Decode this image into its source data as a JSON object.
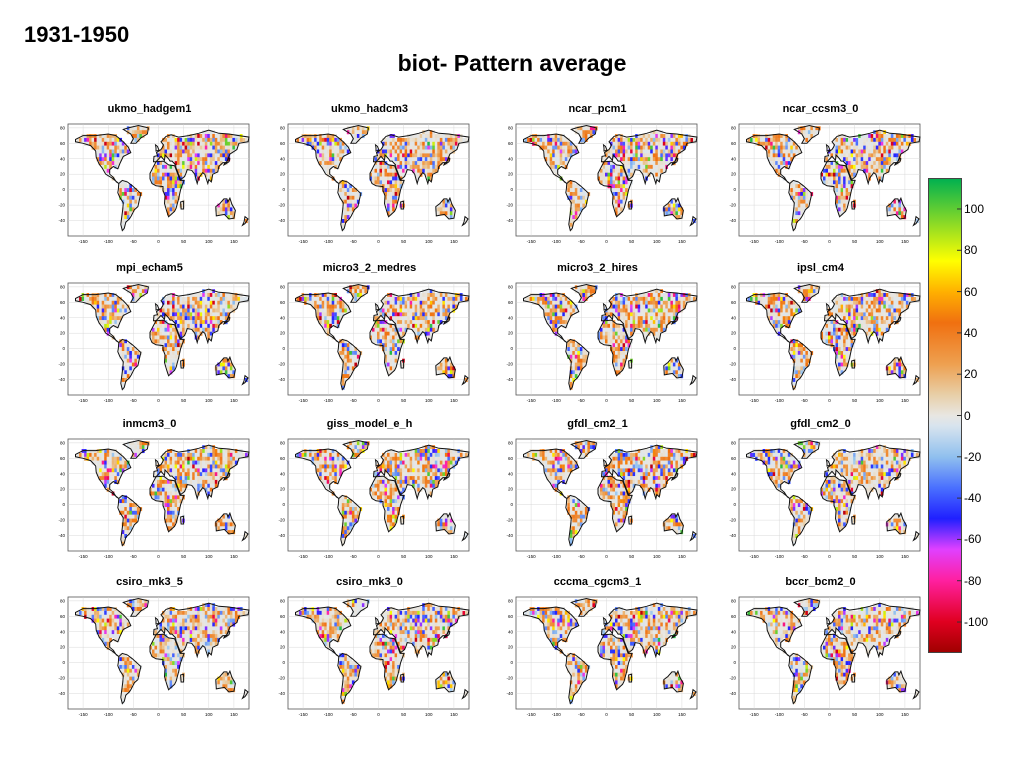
{
  "header": {
    "period": "1931-1950",
    "title": "biot- Pattern average"
  },
  "maps": [
    {
      "model": "ukmo_hadgem1"
    },
    {
      "model": "ukmo_hadcm3"
    },
    {
      "model": "ncar_pcm1"
    },
    {
      "model": "ncar_ccsm3_0"
    },
    {
      "model": "mpi_echam5"
    },
    {
      "model": "micro3_2_medres"
    },
    {
      "model": "micro3_2_hires"
    },
    {
      "model": "ipsl_cm4"
    },
    {
      "model": "inmcm3_0"
    },
    {
      "model": "giss_model_e_h"
    },
    {
      "model": "gfdl_cm2_1"
    },
    {
      "model": "gfdl_cm2_0"
    },
    {
      "model": "csiro_mk3_5"
    },
    {
      "model": "csiro_mk3_0"
    },
    {
      "model": "cccma_cgcm3_1"
    },
    {
      "model": "bccr_bcm2_0"
    }
  ],
  "axes": {
    "lon_ticks": [
      "-150",
      "-100",
      "-50",
      "0",
      "50",
      "100",
      "150"
    ],
    "lat_ticks": [
      "80",
      "60",
      "40",
      "20",
      "0",
      "-20",
      "-40"
    ]
  },
  "colorbar": {
    "range": [
      -115,
      115
    ],
    "ticks": [
      "100",
      "80",
      "60",
      "40",
      "20",
      "0",
      "-20",
      "-40",
      "-60",
      "-80",
      "-100"
    ],
    "tick_values": [
      100,
      80,
      60,
      40,
      20,
      0,
      -20,
      -40,
      -60,
      -80,
      -100
    ],
    "stops": [
      {
        "v": -115,
        "color": "#a00000"
      },
      {
        "v": -100,
        "color": "#e00020"
      },
      {
        "v": -80,
        "color": "#ff20a0"
      },
      {
        "v": -65,
        "color": "#e040ff"
      },
      {
        "v": -50,
        "color": "#2020ff"
      },
      {
        "v": -35,
        "color": "#4a70ff"
      },
      {
        "v": -20,
        "color": "#90c0ee"
      },
      {
        "v": -5,
        "color": "#d8e4ee"
      },
      {
        "v": 0,
        "color": "#e8e6e2"
      },
      {
        "v": 10,
        "color": "#e8cfa8"
      },
      {
        "v": 25,
        "color": "#eea050"
      },
      {
        "v": 45,
        "color": "#f07010"
      },
      {
        "v": 60,
        "color": "#ffb000"
      },
      {
        "v": 75,
        "color": "#ffff00"
      },
      {
        "v": 90,
        "color": "#a0e020"
      },
      {
        "v": 115,
        "color": "#00b050"
      }
    ]
  }
}
